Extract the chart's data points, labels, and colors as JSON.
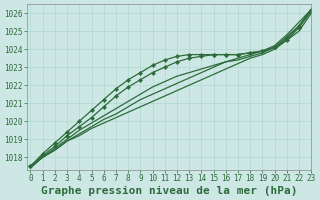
{
  "title": "Graphe pression niveau de la mer (hPa)",
  "bg_color": "#cde8e4",
  "grid_color": "#b0d8d0",
  "line_color": "#2d6b3c",
  "ylim": [
    1017.3,
    1026.5
  ],
  "xlim": [
    -0.3,
    23
  ],
  "yticks": [
    1018,
    1019,
    1020,
    1021,
    1022,
    1023,
    1024,
    1025,
    1026
  ],
  "xticks": [
    0,
    1,
    2,
    3,
    4,
    5,
    6,
    7,
    8,
    9,
    10,
    11,
    12,
    13,
    14,
    15,
    16,
    17,
    18,
    19,
    20,
    21,
    22,
    23
  ],
  "series": [
    {
      "y": [
        1017.5,
        1018.0,
        1018.4,
        1018.9,
        1019.2,
        1019.6,
        1019.9,
        1020.2,
        1020.5,
        1020.8,
        1021.1,
        1021.4,
        1021.7,
        1022.0,
        1022.3,
        1022.6,
        1022.9,
        1023.2,
        1023.5,
        1023.7,
        1024.0,
        1024.5,
        1025.0,
        1026.0
      ],
      "marker": false,
      "lw": 0.9
    },
    {
      "y": [
        1017.5,
        1018.1,
        1018.6,
        1019.2,
        1019.7,
        1020.2,
        1020.8,
        1021.4,
        1021.9,
        1022.3,
        1022.7,
        1023.0,
        1023.3,
        1023.5,
        1023.6,
        1023.7,
        1023.7,
        1023.7,
        1023.8,
        1023.9,
        1024.1,
        1024.5,
        1025.2,
        1026.1
      ],
      "marker": true,
      "lw": 0.9
    },
    {
      "y": [
        1017.5,
        1018.0,
        1018.5,
        1019.0,
        1019.5,
        1019.9,
        1020.3,
        1020.7,
        1021.1,
        1021.5,
        1021.9,
        1022.2,
        1022.5,
        1022.7,
        1022.9,
        1023.1,
        1023.3,
        1023.4,
        1023.6,
        1023.8,
        1024.1,
        1024.7,
        1025.3,
        1026.2
      ],
      "marker": false,
      "lw": 0.9
    },
    {
      "y": [
        1017.5,
        1018.2,
        1018.8,
        1019.4,
        1020.0,
        1020.6,
        1021.2,
        1021.8,
        1022.3,
        1022.7,
        1023.1,
        1023.4,
        1023.6,
        1023.7,
        1023.7,
        1023.7,
        1023.7,
        1023.7,
        1023.8,
        1023.9,
        1024.1,
        1024.6,
        1025.3,
        1026.2
      ],
      "marker": true,
      "lw": 0.9
    },
    {
      "y": [
        1017.4,
        1018.0,
        1018.4,
        1018.9,
        1019.3,
        1019.7,
        1020.1,
        1020.4,
        1020.8,
        1021.2,
        1021.5,
        1021.8,
        1022.1,
        1022.4,
        1022.7,
        1023.0,
        1023.3,
        1023.5,
        1023.7,
        1023.9,
        1024.2,
        1024.8,
        1025.5,
        1026.2
      ],
      "marker": false,
      "lw": 0.9
    }
  ],
  "title_fontsize": 8,
  "axis_fontsize": 6,
  "label_fontsize": 8
}
